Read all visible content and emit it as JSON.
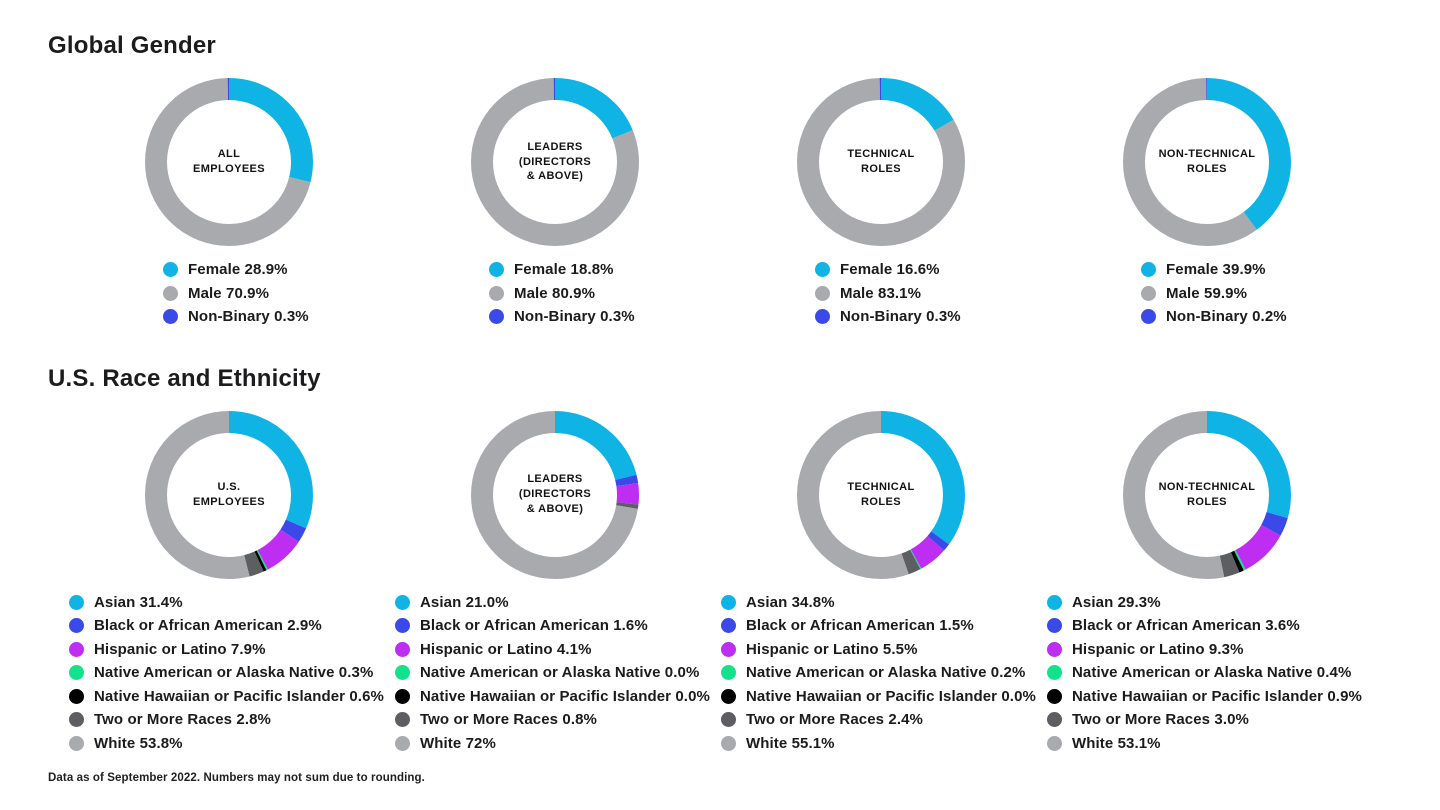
{
  "footnote": "Data as of September 2022. Numbers may not sum due to rounding.",
  "chart_data": [
    {
      "type": "donut",
      "title": "Global Gender",
      "legend_position": "below-center",
      "categories": [
        {
          "name": "Female",
          "color": "#0fb4e5"
        },
        {
          "name": "Male",
          "color": "#a8aaad"
        },
        {
          "name": "Non-Binary",
          "color": "#3b49e9"
        }
      ],
      "charts": [
        {
          "center_label": [
            "ALL",
            "EMPLOYEES"
          ],
          "values": [
            "28.9",
            "70.9",
            "0.3"
          ]
        },
        {
          "center_label": [
            "LEADERS",
            "(DIRECTORS",
            "& ABOVE)"
          ],
          "values": [
            "18.8",
            "80.9",
            "0.3"
          ]
        },
        {
          "center_label": [
            "TECHNICAL",
            "ROLES"
          ],
          "values": [
            "16.6",
            "83.1",
            "0.3"
          ]
        },
        {
          "center_label": [
            "NON-TECHNICAL",
            "ROLES"
          ],
          "values": [
            "39.9",
            "59.9",
            "0.2"
          ]
        }
      ]
    },
    {
      "type": "donut",
      "title": "U.S. Race and Ethnicity",
      "legend_position": "below-left",
      "categories": [
        {
          "name": "Asian",
          "color": "#0fb4e5"
        },
        {
          "name": "Black or African American",
          "color": "#3b49e9"
        },
        {
          "name": "Hispanic or Latino",
          "color": "#be2ef2"
        },
        {
          "name": "Native American or Alaska Native",
          "color": "#12e28c"
        },
        {
          "name": "Native Hawaiian or Pacific Islander",
          "color": "#000000"
        },
        {
          "name": "Two or More Races",
          "color": "#5d5e61"
        },
        {
          "name": "White",
          "color": "#a8aaad"
        }
      ],
      "charts": [
        {
          "center_label": [
            "U.S.",
            "EMPLOYEES"
          ],
          "values": [
            "31.4",
            "2.9",
            "7.9",
            "0.3",
            "0.6",
            "2.8",
            "53.8"
          ]
        },
        {
          "center_label": [
            "LEADERS",
            "(DIRECTORS",
            "& ABOVE)"
          ],
          "values": [
            "21.0",
            "1.6",
            "4.1",
            "0.0",
            "0.0",
            "0.8",
            "72"
          ]
        },
        {
          "center_label": [
            "TECHNICAL",
            "ROLES"
          ],
          "values": [
            "34.8",
            "1.5",
            "5.5",
            "0.2",
            "0.0",
            "2.4",
            "55.1"
          ]
        },
        {
          "center_label": [
            "NON-TECHNICAL",
            "ROLES"
          ],
          "values": [
            "29.3",
            "3.6",
            "9.3",
            "0.4",
            "0.9",
            "3.0",
            "53.1"
          ]
        }
      ]
    }
  ]
}
